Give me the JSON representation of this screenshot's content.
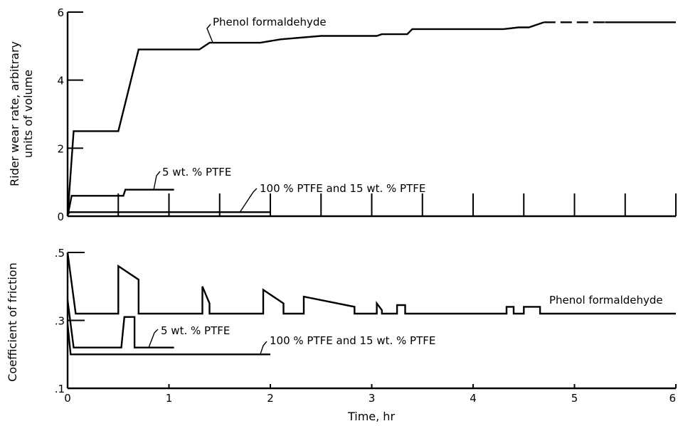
{
  "chart_data": [
    {
      "type": "line",
      "ylabel_lines": [
        "Rider wear rate, arbitrary",
        "units of volume"
      ],
      "ylim": [
        0,
        6
      ],
      "xlim": [
        0,
        6
      ],
      "y_ticks": [
        0,
        2,
        4,
        6
      ],
      "y_tick_labels": [
        "0",
        "2",
        "4",
        "6"
      ],
      "x_ticks": [
        0,
        0.5,
        1,
        1.5,
        2,
        2.5,
        3,
        3.5,
        4,
        4.5,
        5,
        5.5,
        6
      ],
      "series": [
        {
          "name": "Phenol formaldehyde",
          "points": [
            [
              0,
              0
            ],
            [
              0.06,
              2.5
            ],
            [
              0.5,
              2.5
            ],
            [
              0.7,
              4.9
            ],
            [
              1.3,
              4.9
            ],
            [
              1.4,
              5.1
            ],
            [
              1.9,
              5.1
            ],
            [
              2.1,
              5.2
            ],
            [
              2.5,
              5.3
            ],
            [
              3.05,
              5.3
            ],
            [
              3.1,
              5.35
            ],
            [
              3.35,
              5.35
            ],
            [
              3.4,
              5.5
            ],
            [
              4.3,
              5.5
            ],
            [
              4.45,
              5.55
            ],
            [
              4.55,
              5.55
            ],
            [
              4.7,
              5.7
            ]
          ],
          "dashed_points": [
            [
              4.7,
              5.7
            ],
            [
              5.3,
              5.7
            ]
          ],
          "tail_points": [
            [
              5.3,
              5.7
            ],
            [
              6,
              5.7
            ]
          ]
        },
        {
          "name": "5 wt. % PTFE",
          "points": [
            [
              0,
              0
            ],
            [
              0.04,
              0.6
            ],
            [
              0.55,
              0.6
            ],
            [
              0.57,
              0.78
            ],
            [
              1.05,
              0.78
            ]
          ]
        },
        {
          "name": "100 % PTFE and 15 wt. % PTFE",
          "points": [
            [
              0,
              0.05
            ],
            [
              0.02,
              0.12
            ],
            [
              2,
              0.12
            ]
          ]
        }
      ],
      "annotations": [
        {
          "text": "Phenol formaldehyde"
        },
        {
          "text": "5 wt. % PTFE"
        },
        {
          "text": "100 % PTFE and 15 wt. % PTFE"
        }
      ]
    },
    {
      "type": "line",
      "ylabel": "Coefficient of friction",
      "xlabel": "Time, hr",
      "ylim": [
        0.1,
        0.5
      ],
      "xlim": [
        0,
        6
      ],
      "y_ticks": [
        0.1,
        0.3,
        0.5
      ],
      "y_tick_labels": [
        ".1",
        ".3",
        ".5"
      ],
      "x_ticks": [
        0,
        1,
        2,
        3,
        4,
        5,
        6
      ],
      "x_tick_labels": [
        "0",
        "1",
        "2",
        "3",
        "4",
        "5",
        "6"
      ],
      "series": [
        {
          "name": "Phenol formaldehyde",
          "points": [
            [
              0,
              0.5
            ],
            [
              0.08,
              0.32
            ],
            [
              0.5,
              0.32
            ],
            [
              0.5,
              0.46
            ],
            [
              0.7,
              0.42
            ],
            [
              0.7,
              0.32
            ],
            [
              1.33,
              0.32
            ],
            [
              1.33,
              0.4
            ],
            [
              1.4,
              0.35
            ],
            [
              1.4,
              0.32
            ],
            [
              1.93,
              0.32
            ],
            [
              1.93,
              0.39
            ],
            [
              2.13,
              0.35
            ],
            [
              2.13,
              0.32
            ],
            [
              2.33,
              0.32
            ],
            [
              2.33,
              0.37
            ],
            [
              2.83,
              0.34
            ],
            [
              2.83,
              0.32
            ],
            [
              3.05,
              0.32
            ],
            [
              3.05,
              0.35
            ],
            [
              3.1,
              0.33
            ],
            [
              3.1,
              0.32
            ],
            [
              3.25,
              0.32
            ],
            [
              3.25,
              0.345
            ],
            [
              3.33,
              0.345
            ],
            [
              3.33,
              0.32
            ],
            [
              4.33,
              0.32
            ],
            [
              4.33,
              0.34
            ],
            [
              4.4,
              0.34
            ],
            [
              4.4,
              0.32
            ],
            [
              4.5,
              0.32
            ],
            [
              4.5,
              0.34
            ],
            [
              4.66,
              0.34
            ],
            [
              4.66,
              0.32
            ],
            [
              6,
              0.32
            ]
          ]
        },
        {
          "name": "5 wt. % PTFE",
          "points": [
            [
              0,
              0.36
            ],
            [
              0.06,
              0.22
            ],
            [
              0.53,
              0.22
            ],
            [
              0.56,
              0.31
            ],
            [
              0.66,
              0.31
            ],
            [
              0.66,
              0.22
            ],
            [
              1.05,
              0.22
            ]
          ]
        },
        {
          "name": "100 % PTFE and 15 wt. % PTFE",
          "points": [
            [
              0,
              0.29
            ],
            [
              0.03,
              0.2
            ],
            [
              2,
              0.2
            ]
          ]
        }
      ],
      "annotations": [
        {
          "text": "Phenol formaldehyde"
        },
        {
          "text": "5 wt. % PTFE"
        },
        {
          "text": "100 % PTFE and 15 wt. % PTFE"
        }
      ]
    }
  ]
}
